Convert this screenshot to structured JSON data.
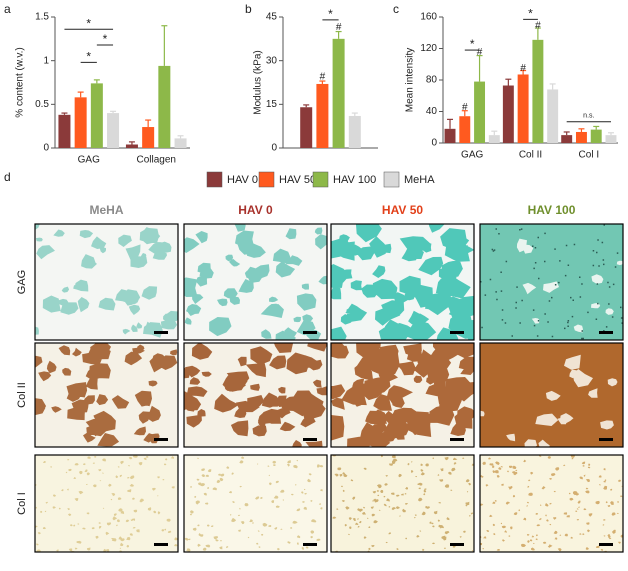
{
  "chart_data": [
    {
      "type": "bar",
      "panel": "a",
      "ylabel": "% content (w.v.)",
      "categories": [
        "GAG",
        "Collagen"
      ],
      "series": [
        {
          "name": "HAV 0",
          "color": "#8b3a3a",
          "values": [
            0.38,
            0.04
          ],
          "errors": [
            0.02,
            0.03
          ]
        },
        {
          "name": "HAV 50",
          "color": "#ff5a1f",
          "values": [
            0.58,
            0.24
          ],
          "errors": [
            0.06,
            0.08
          ]
        },
        {
          "name": "HAV 100",
          "color": "#8db849",
          "values": [
            0.74,
            0.94
          ],
          "errors": [
            0.04,
            0.46
          ]
        },
        {
          "name": "MeHA",
          "color": "#d9d9d9",
          "values": [
            0.4,
            0.11
          ],
          "errors": [
            0.02,
            0.03
          ]
        }
      ],
      "ylim": [
        0,
        1.5
      ],
      "yticks": [
        0,
        0.5,
        1,
        1.5
      ],
      "annotations": [
        "*",
        "*",
        "*"
      ]
    },
    {
      "type": "bar",
      "panel": "b",
      "ylabel": "Modulus (kPa)",
      "categories": [
        null
      ],
      "series": [
        {
          "color": "#8b3a3a",
          "values": [
            14
          ],
          "errors": [
            0.8
          ]
        },
        {
          "color": "#ff5a1f",
          "values": [
            22
          ],
          "errors": [
            1
          ]
        },
        {
          "color": "#8db849",
          "values": [
            37.5
          ],
          "errors": [
            2.5
          ]
        },
        {
          "color": "#d9d9d9",
          "values": [
            11
          ],
          "errors": [
            1
          ]
        }
      ],
      "ylim": [
        0,
        45
      ],
      "yticks": [
        0,
        15,
        30,
        45
      ],
      "annotations": [
        "#",
        "#",
        "*"
      ]
    },
    {
      "type": "bar",
      "panel": "c",
      "ylabel": "Mean intensity",
      "categories": [
        "GAG",
        "Col II",
        "Col I"
      ],
      "series": [
        {
          "color": "#8b3a3a",
          "values": [
            18,
            73,
            10
          ],
          "errors": [
            12,
            8,
            4
          ]
        },
        {
          "color": "#ff5a1f",
          "values": [
            34,
            87,
            14
          ],
          "errors": [
            7,
            5,
            4
          ]
        },
        {
          "color": "#8db849",
          "values": [
            78,
            131,
            17
          ],
          "errors": [
            33,
            15,
            4
          ]
        },
        {
          "color": "#d9d9d9",
          "values": [
            10,
            68,
            10
          ],
          "errors": [
            5,
            7,
            3
          ]
        }
      ],
      "ylim": [
        0,
        160
      ],
      "yticks": [
        0,
        40,
        80,
        120,
        160
      ],
      "annotations": [
        "#",
        "#",
        "*",
        "#",
        "#",
        "*",
        "n.s."
      ]
    }
  ],
  "stain_panel": {
    "label": "d",
    "columns": [
      "MeHA",
      "HAV 0",
      "HAV 50",
      "HAV 100"
    ],
    "column_colors": [
      "#8a8a8a",
      "#a8322c",
      "#e2401a",
      "#6f8f2c"
    ],
    "rows": [
      "GAG",
      "Col II",
      "Col I"
    ]
  }
}
